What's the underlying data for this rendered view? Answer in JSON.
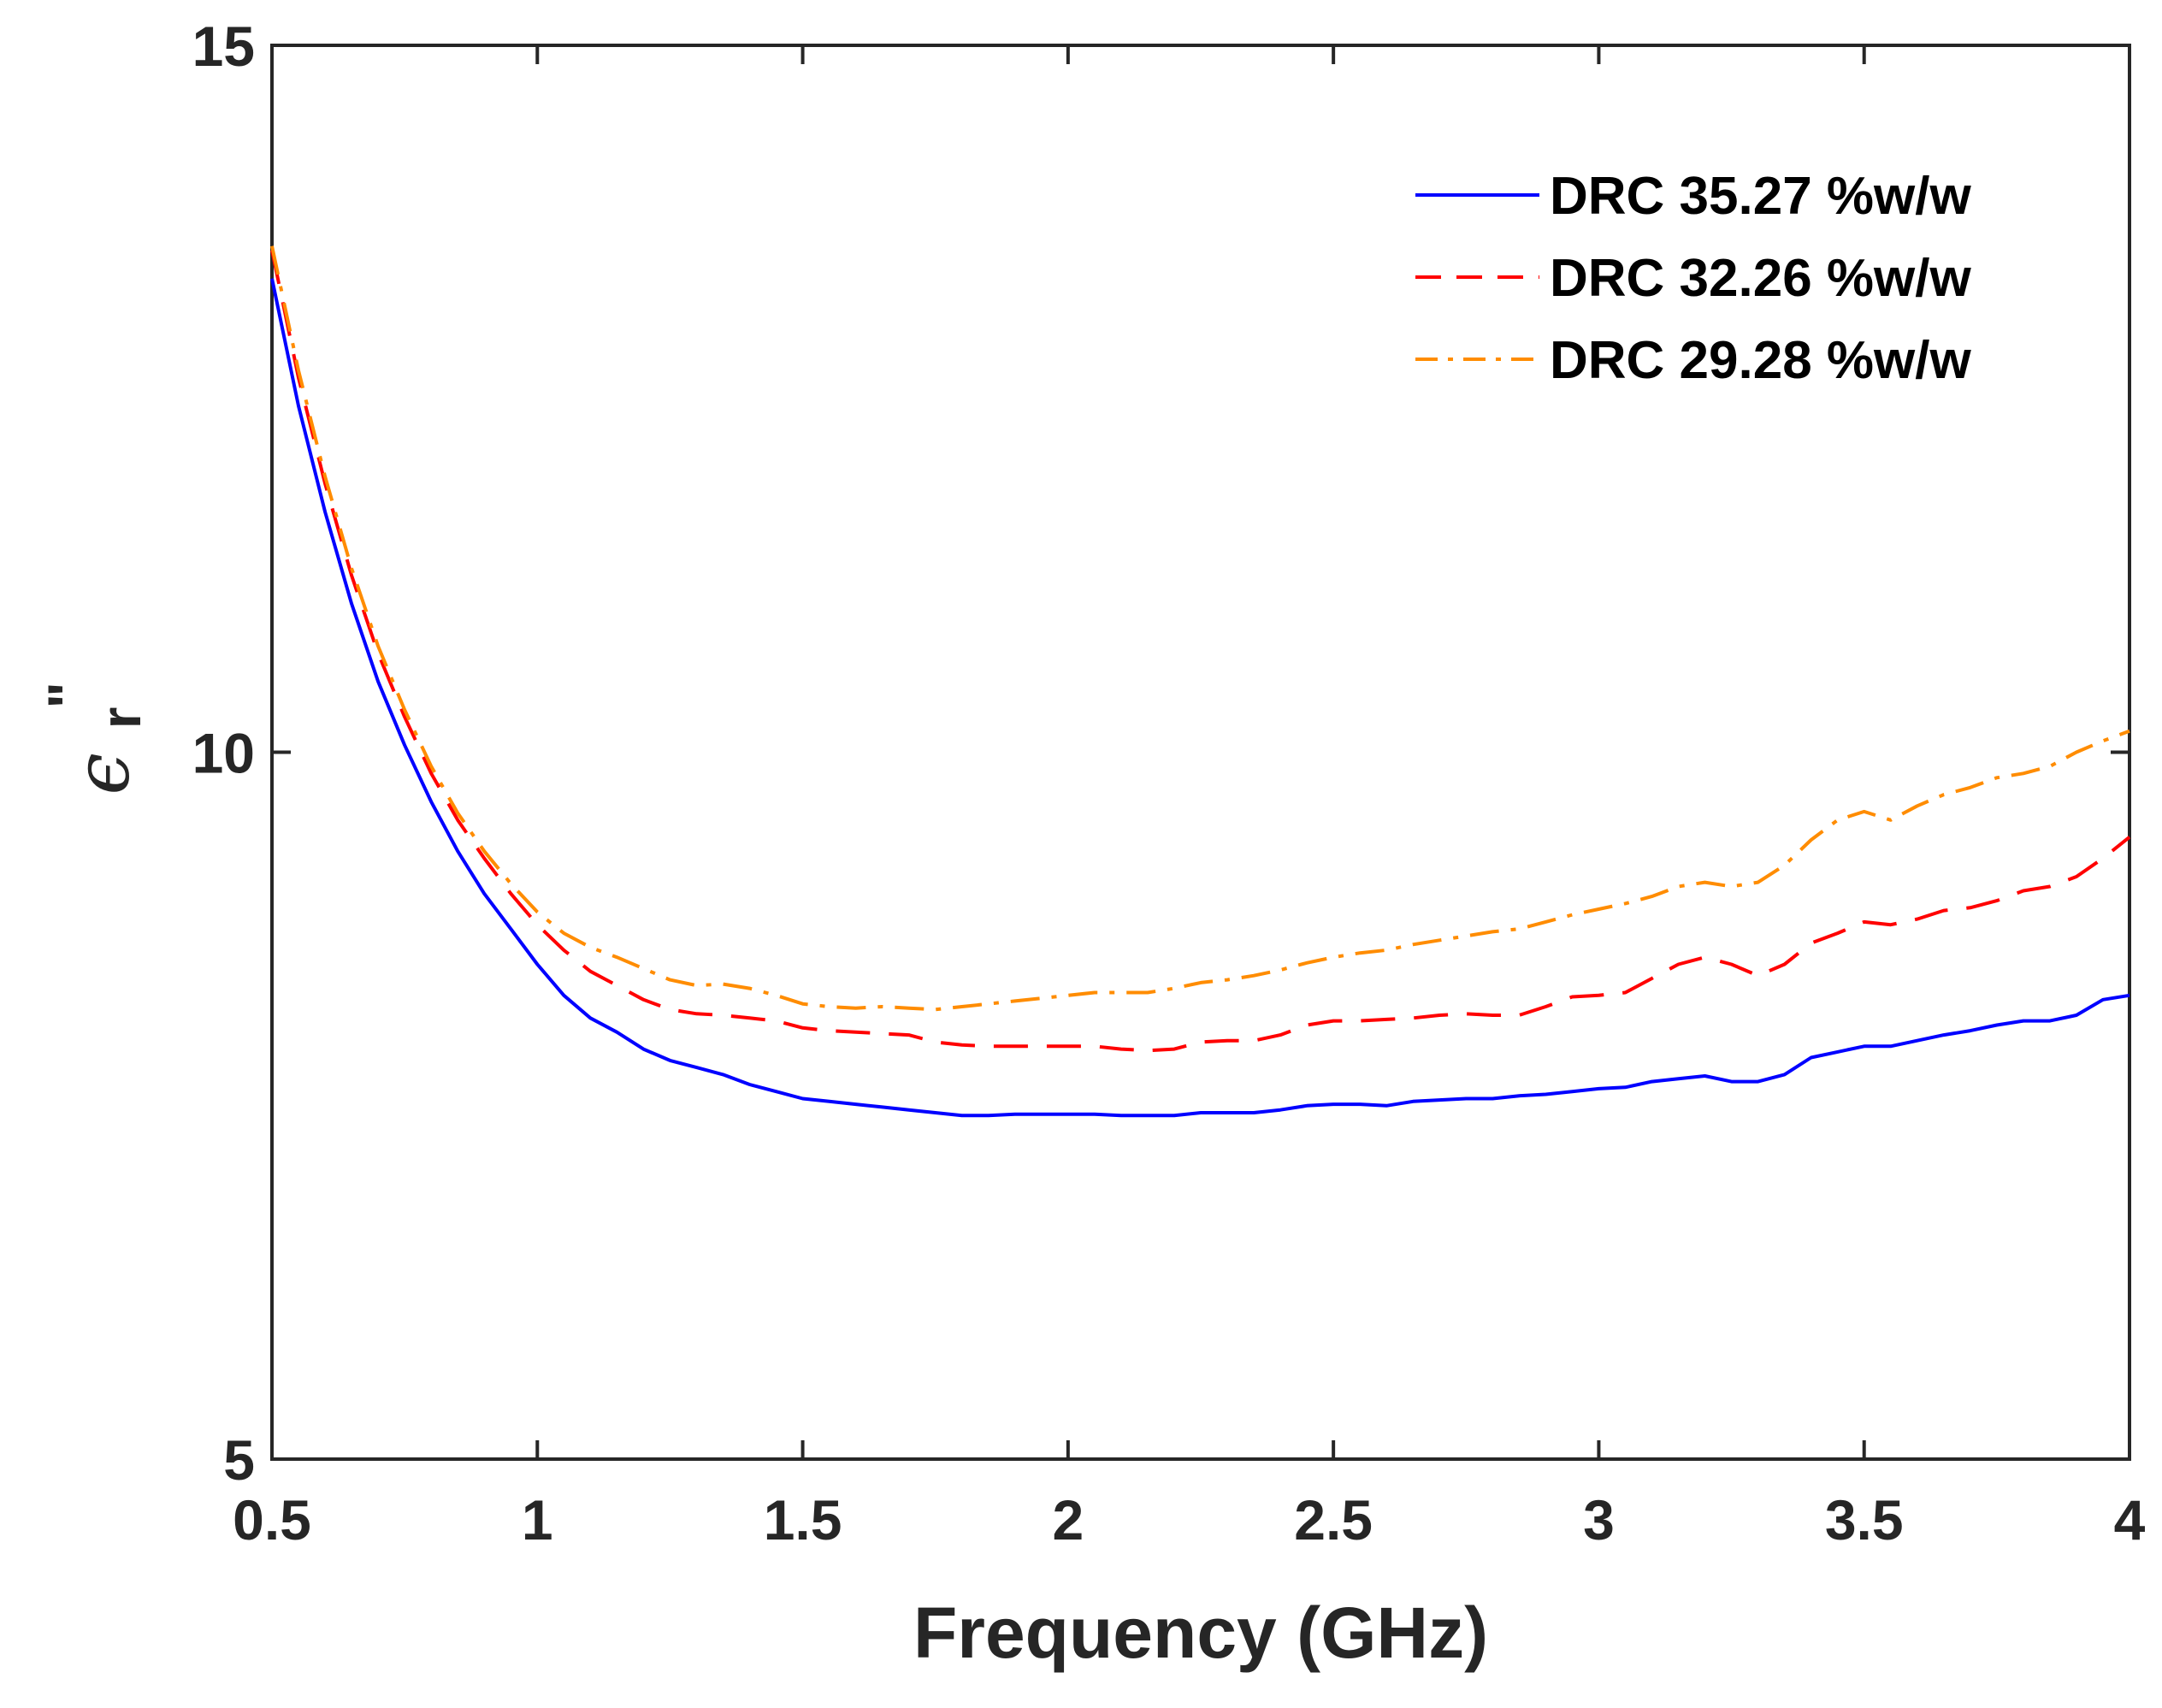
{
  "chart_data": {
    "type": "line",
    "title": "",
    "xlabel": "Frequency (GHz)",
    "ylabel_symbol": "ϵ",
    "ylabel_subscript": "r",
    "ylabel_superscript": "\"",
    "xlim": [
      0.5,
      4
    ],
    "ylim": [
      5,
      15
    ],
    "xticks": [
      0.5,
      1,
      1.5,
      2,
      2.5,
      3,
      3.5,
      4
    ],
    "xtick_labels": [
      "0.5",
      "1",
      "1.5",
      "2",
      "2.5",
      "3",
      "3.5",
      "4"
    ],
    "yticks": [
      5,
      10,
      15
    ],
    "ytick_labels": [
      "5",
      "10",
      "15"
    ],
    "grid": false,
    "legend_position": "top-right",
    "series": [
      {
        "name": "DRC 35.27 %w/w",
        "color": "#0000ff",
        "style": "solid",
        "x": [
          0.5,
          0.55,
          0.6,
          0.65,
          0.7,
          0.75,
          0.8,
          0.85,
          0.9,
          0.95,
          1.0,
          1.05,
          1.1,
          1.15,
          1.2,
          1.25,
          1.3,
          1.35,
          1.4,
          1.45,
          1.5,
          1.55,
          1.6,
          1.65,
          1.7,
          1.75,
          1.8,
          1.85,
          1.9,
          1.95,
          2.0,
          2.05,
          2.1,
          2.15,
          2.2,
          2.25,
          2.3,
          2.35,
          2.4,
          2.45,
          2.5,
          2.55,
          2.6,
          2.65,
          2.7,
          2.75,
          2.8,
          2.85,
          2.9,
          2.95,
          3.0,
          3.05,
          3.1,
          3.15,
          3.2,
          3.25,
          3.3,
          3.35,
          3.4,
          3.45,
          3.5,
          3.55,
          3.6,
          3.65,
          3.7,
          3.75,
          3.8,
          3.85,
          3.9,
          3.95,
          4.0
        ],
        "y": [
          13.35,
          12.45,
          11.7,
          11.05,
          10.5,
          10.05,
          9.65,
          9.3,
          9.0,
          8.75,
          8.5,
          8.28,
          8.12,
          8.02,
          7.9,
          7.82,
          7.77,
          7.72,
          7.65,
          7.6,
          7.55,
          7.53,
          7.51,
          7.49,
          7.47,
          7.45,
          7.43,
          7.43,
          7.44,
          7.44,
          7.44,
          7.44,
          7.43,
          7.43,
          7.43,
          7.45,
          7.45,
          7.45,
          7.47,
          7.5,
          7.51,
          7.51,
          7.5,
          7.53,
          7.54,
          7.55,
          7.55,
          7.57,
          7.58,
          7.6,
          7.62,
          7.63,
          7.67,
          7.69,
          7.71,
          7.67,
          7.67,
          7.72,
          7.84,
          7.88,
          7.92,
          7.92,
          7.96,
          8.0,
          8.03,
          8.07,
          8.1,
          8.1,
          8.14,
          8.25,
          8.28
        ]
      },
      {
        "name": "DRC 32.26 %w/w",
        "color": "#ff0000",
        "style": "dashed",
        "x": [
          0.5,
          0.55,
          0.6,
          0.65,
          0.7,
          0.75,
          0.8,
          0.85,
          0.9,
          0.95,
          1.0,
          1.05,
          1.1,
          1.15,
          1.2,
          1.25,
          1.3,
          1.35,
          1.4,
          1.45,
          1.5,
          1.55,
          1.6,
          1.65,
          1.7,
          1.75,
          1.8,
          1.85,
          1.9,
          1.95,
          2.0,
          2.05,
          2.1,
          2.15,
          2.2,
          2.25,
          2.3,
          2.35,
          2.4,
          2.45,
          2.5,
          2.55,
          2.6,
          2.65,
          2.7,
          2.75,
          2.8,
          2.85,
          2.9,
          2.95,
          3.0,
          3.05,
          3.1,
          3.15,
          3.2,
          3.25,
          3.3,
          3.35,
          3.4,
          3.45,
          3.5,
          3.55,
          3.6,
          3.65,
          3.7,
          3.75,
          3.8,
          3.85,
          3.9,
          3.95,
          4.0
        ],
        "y": [
          13.55,
          12.65,
          11.9,
          11.25,
          10.7,
          10.25,
          9.85,
          9.52,
          9.25,
          9.0,
          8.78,
          8.6,
          8.45,
          8.35,
          8.25,
          8.18,
          8.15,
          8.14,
          8.12,
          8.1,
          8.05,
          8.03,
          8.02,
          8.01,
          8.0,
          7.95,
          7.93,
          7.92,
          7.92,
          7.92,
          7.92,
          7.92,
          7.9,
          7.89,
          7.9,
          7.95,
          7.96,
          7.96,
          8.0,
          8.07,
          8.1,
          8.1,
          8.11,
          8.12,
          8.14,
          8.15,
          8.14,
          8.14,
          8.2,
          8.27,
          8.28,
          8.3,
          8.4,
          8.5,
          8.55,
          8.5,
          8.42,
          8.5,
          8.65,
          8.72,
          8.8,
          8.78,
          8.82,
          8.88,
          8.9,
          8.95,
          9.02,
          9.05,
          9.12,
          9.25,
          9.4
        ]
      },
      {
        "name": "DRC 29.28 %w/w",
        "color": "#ff8c00",
        "style": "dashdot",
        "x": [
          0.5,
          0.55,
          0.6,
          0.65,
          0.7,
          0.75,
          0.8,
          0.85,
          0.9,
          0.95,
          1.0,
          1.05,
          1.1,
          1.15,
          1.2,
          1.25,
          1.3,
          1.35,
          1.4,
          1.45,
          1.5,
          1.55,
          1.6,
          1.65,
          1.7,
          1.75,
          1.8,
          1.85,
          1.9,
          1.95,
          2.0,
          2.05,
          2.1,
          2.15,
          2.2,
          2.25,
          2.3,
          2.35,
          2.4,
          2.45,
          2.5,
          2.55,
          2.6,
          2.65,
          2.7,
          2.75,
          2.8,
          2.85,
          2.9,
          2.95,
          3.0,
          3.05,
          3.1,
          3.15,
          3.2,
          3.25,
          3.3,
          3.35,
          3.4,
          3.45,
          3.5,
          3.55,
          3.6,
          3.65,
          3.7,
          3.75,
          3.8,
          3.85,
          3.9,
          3.95,
          4.0
        ],
        "y": [
          13.58,
          12.7,
          11.95,
          11.3,
          10.75,
          10.3,
          9.9,
          9.57,
          9.3,
          9.07,
          8.87,
          8.72,
          8.62,
          8.55,
          8.47,
          8.39,
          8.35,
          8.36,
          8.33,
          8.28,
          8.22,
          8.2,
          8.19,
          8.2,
          8.19,
          8.18,
          8.2,
          8.22,
          8.24,
          8.26,
          8.28,
          8.3,
          8.3,
          8.3,
          8.33,
          8.37,
          8.39,
          8.42,
          8.46,
          8.51,
          8.55,
          8.58,
          8.6,
          8.64,
          8.67,
          8.7,
          8.73,
          8.75,
          8.8,
          8.85,
          8.89,
          8.93,
          8.98,
          9.05,
          9.08,
          9.05,
          9.08,
          9.2,
          9.38,
          9.52,
          9.58,
          9.52,
          9.62,
          9.7,
          9.75,
          9.82,
          9.85,
          9.9,
          10.0,
          10.08,
          10.15
        ]
      }
    ]
  }
}
